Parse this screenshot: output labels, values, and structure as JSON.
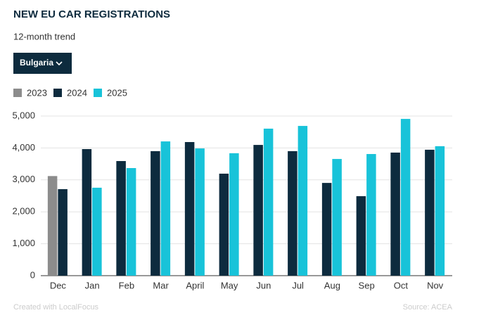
{
  "chart_data": {
    "type": "bar",
    "title": "NEW EU CAR REGISTRATIONS",
    "subtitle": "12-month trend",
    "dropdown": "Bulgaria",
    "credit": "Created with LocalFocus",
    "source": "Source: ACEA",
    "categories": [
      "Dec",
      "Jan",
      "Feb",
      "Mar",
      "April",
      "May",
      "Jun",
      "Jul",
      "Aug",
      "Sep",
      "Oct",
      "Nov"
    ],
    "series": [
      {
        "name": "2023",
        "color": "#8c8c8c",
        "values": [
          3120,
          null,
          null,
          null,
          null,
          null,
          null,
          null,
          null,
          null,
          null,
          null
        ]
      },
      {
        "name": "2024",
        "color": "#0d2b3e",
        "values": [
          2710,
          3965,
          3590,
          3900,
          4185,
          3195,
          4095,
          3900,
          2905,
          2490,
          3855,
          3945
        ]
      },
      {
        "name": "2025",
        "color": "#18c3d9",
        "values": [
          null,
          2755,
          3370,
          4205,
          3985,
          3835,
          4605,
          4690,
          3655,
          3810,
          4910,
          4055
        ]
      }
    ],
    "ylim": [
      0,
      5000
    ],
    "yticks": [
      0,
      {
        "value": 1000,
        "label": "1,000"
      },
      {
        "value": 2000,
        "label": "2,000"
      },
      {
        "value": 3000,
        "label": "3,000"
      },
      {
        "value": 4000,
        "label": "4,000"
      },
      {
        "value": 5000,
        "label": "5,000"
      }
    ],
    "grid": true
  }
}
